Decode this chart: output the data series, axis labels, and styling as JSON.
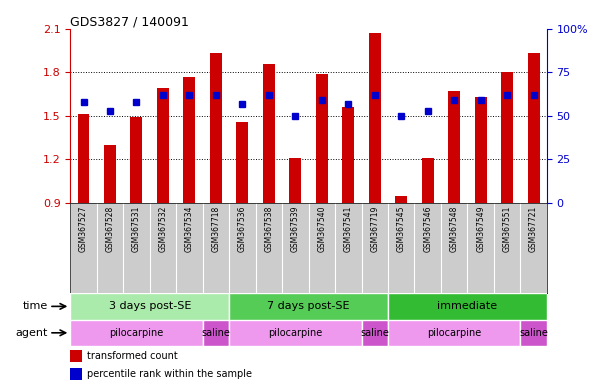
{
  "title": "GDS3827 / 140091",
  "samples": [
    "GSM367527",
    "GSM367528",
    "GSM367531",
    "GSM367532",
    "GSM367534",
    "GSM367718",
    "GSM367536",
    "GSM367538",
    "GSM367539",
    "GSM367540",
    "GSM367541",
    "GSM367719",
    "GSM367545",
    "GSM367546",
    "GSM367548",
    "GSM367549",
    "GSM367551",
    "GSM367721"
  ],
  "bar_values": [
    1.51,
    1.3,
    1.49,
    1.69,
    1.77,
    1.93,
    1.46,
    1.86,
    1.21,
    1.79,
    1.56,
    2.07,
    0.95,
    1.21,
    1.67,
    1.63,
    1.8,
    1.93
  ],
  "dot_values": [
    58,
    53,
    58,
    62,
    62,
    62,
    57,
    62,
    50,
    59,
    57,
    62,
    50,
    53,
    59,
    59,
    62,
    62
  ],
  "ylim_left": [
    0.9,
    2.1
  ],
  "ylim_right": [
    0,
    100
  ],
  "yticks_left": [
    0.9,
    1.2,
    1.5,
    1.8,
    2.1
  ],
  "yticks_right": [
    0,
    25,
    50,
    75,
    100
  ],
  "ytick_labels_right": [
    "0",
    "25",
    "50",
    "75",
    "100%"
  ],
  "bar_color": "#cc0000",
  "dot_color": "#0000cc",
  "bar_bottom": 0.9,
  "groups": [
    {
      "label": "3 days post-SE",
      "start": 0,
      "end": 6,
      "color": "#aaeaaa"
    },
    {
      "label": "7 days post-SE",
      "start": 6,
      "end": 12,
      "color": "#55cc55"
    },
    {
      "label": "immediate",
      "start": 12,
      "end": 18,
      "color": "#33bb33"
    }
  ],
  "agents": [
    {
      "label": "pilocarpine",
      "start": 0,
      "end": 5,
      "color": "#ee99ee"
    },
    {
      "label": "saline",
      "start": 5,
      "end": 6,
      "color": "#cc55cc"
    },
    {
      "label": "pilocarpine",
      "start": 6,
      "end": 11,
      "color": "#ee99ee"
    },
    {
      "label": "saline",
      "start": 11,
      "end": 12,
      "color": "#cc55cc"
    },
    {
      "label": "pilocarpine",
      "start": 12,
      "end": 17,
      "color": "#ee99ee"
    },
    {
      "label": "saline",
      "start": 17,
      "end": 18,
      "color": "#cc55cc"
    }
  ],
  "time_label": "time",
  "agent_label": "agent",
  "legend_bar": "transformed count",
  "legend_dot": "percentile rank within the sample",
  "grid_color": "#000000",
  "bg_color": "#ffffff",
  "tick_label_area_color": "#cccccc"
}
